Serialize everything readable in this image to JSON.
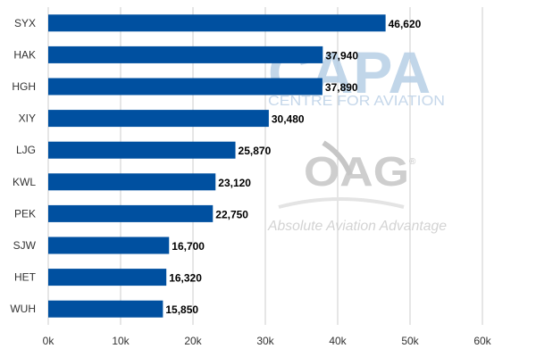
{
  "chart_data": {
    "type": "bar",
    "orientation": "horizontal",
    "categories": [
      "SYX",
      "HAK",
      "HGH",
      "XIY",
      "LJG",
      "KWL",
      "PEK",
      "SJW",
      "HET",
      "WUH"
    ],
    "values": [
      46620,
      37940,
      37890,
      30480,
      25870,
      23120,
      22750,
      16700,
      16320,
      15850
    ],
    "value_labels": [
      "46,620",
      "37,940",
      "37,890",
      "30,480",
      "25,870",
      "23,120",
      "22,750",
      "16,700",
      "16,320",
      "15,850"
    ],
    "title": "",
    "xlabel": "",
    "ylabel": "",
    "xlim": [
      0,
      60000
    ],
    "xticks": [
      0,
      10000,
      20000,
      30000,
      40000,
      50000,
      60000
    ],
    "xtick_labels": [
      "0k",
      "10k",
      "20k",
      "30k",
      "40k",
      "50k",
      "60k"
    ],
    "grid": "vertical",
    "legend": "none",
    "bar_color": "#0050a0",
    "grid_color": "#cccccc"
  },
  "watermarks": {
    "capa_logo": "CAPA",
    "capa_tagline": "CENTRE FOR AVIATION",
    "oag_logo": "OAG",
    "oag_registered": "®",
    "oag_tagline": "Absolute Aviation Advantage"
  }
}
